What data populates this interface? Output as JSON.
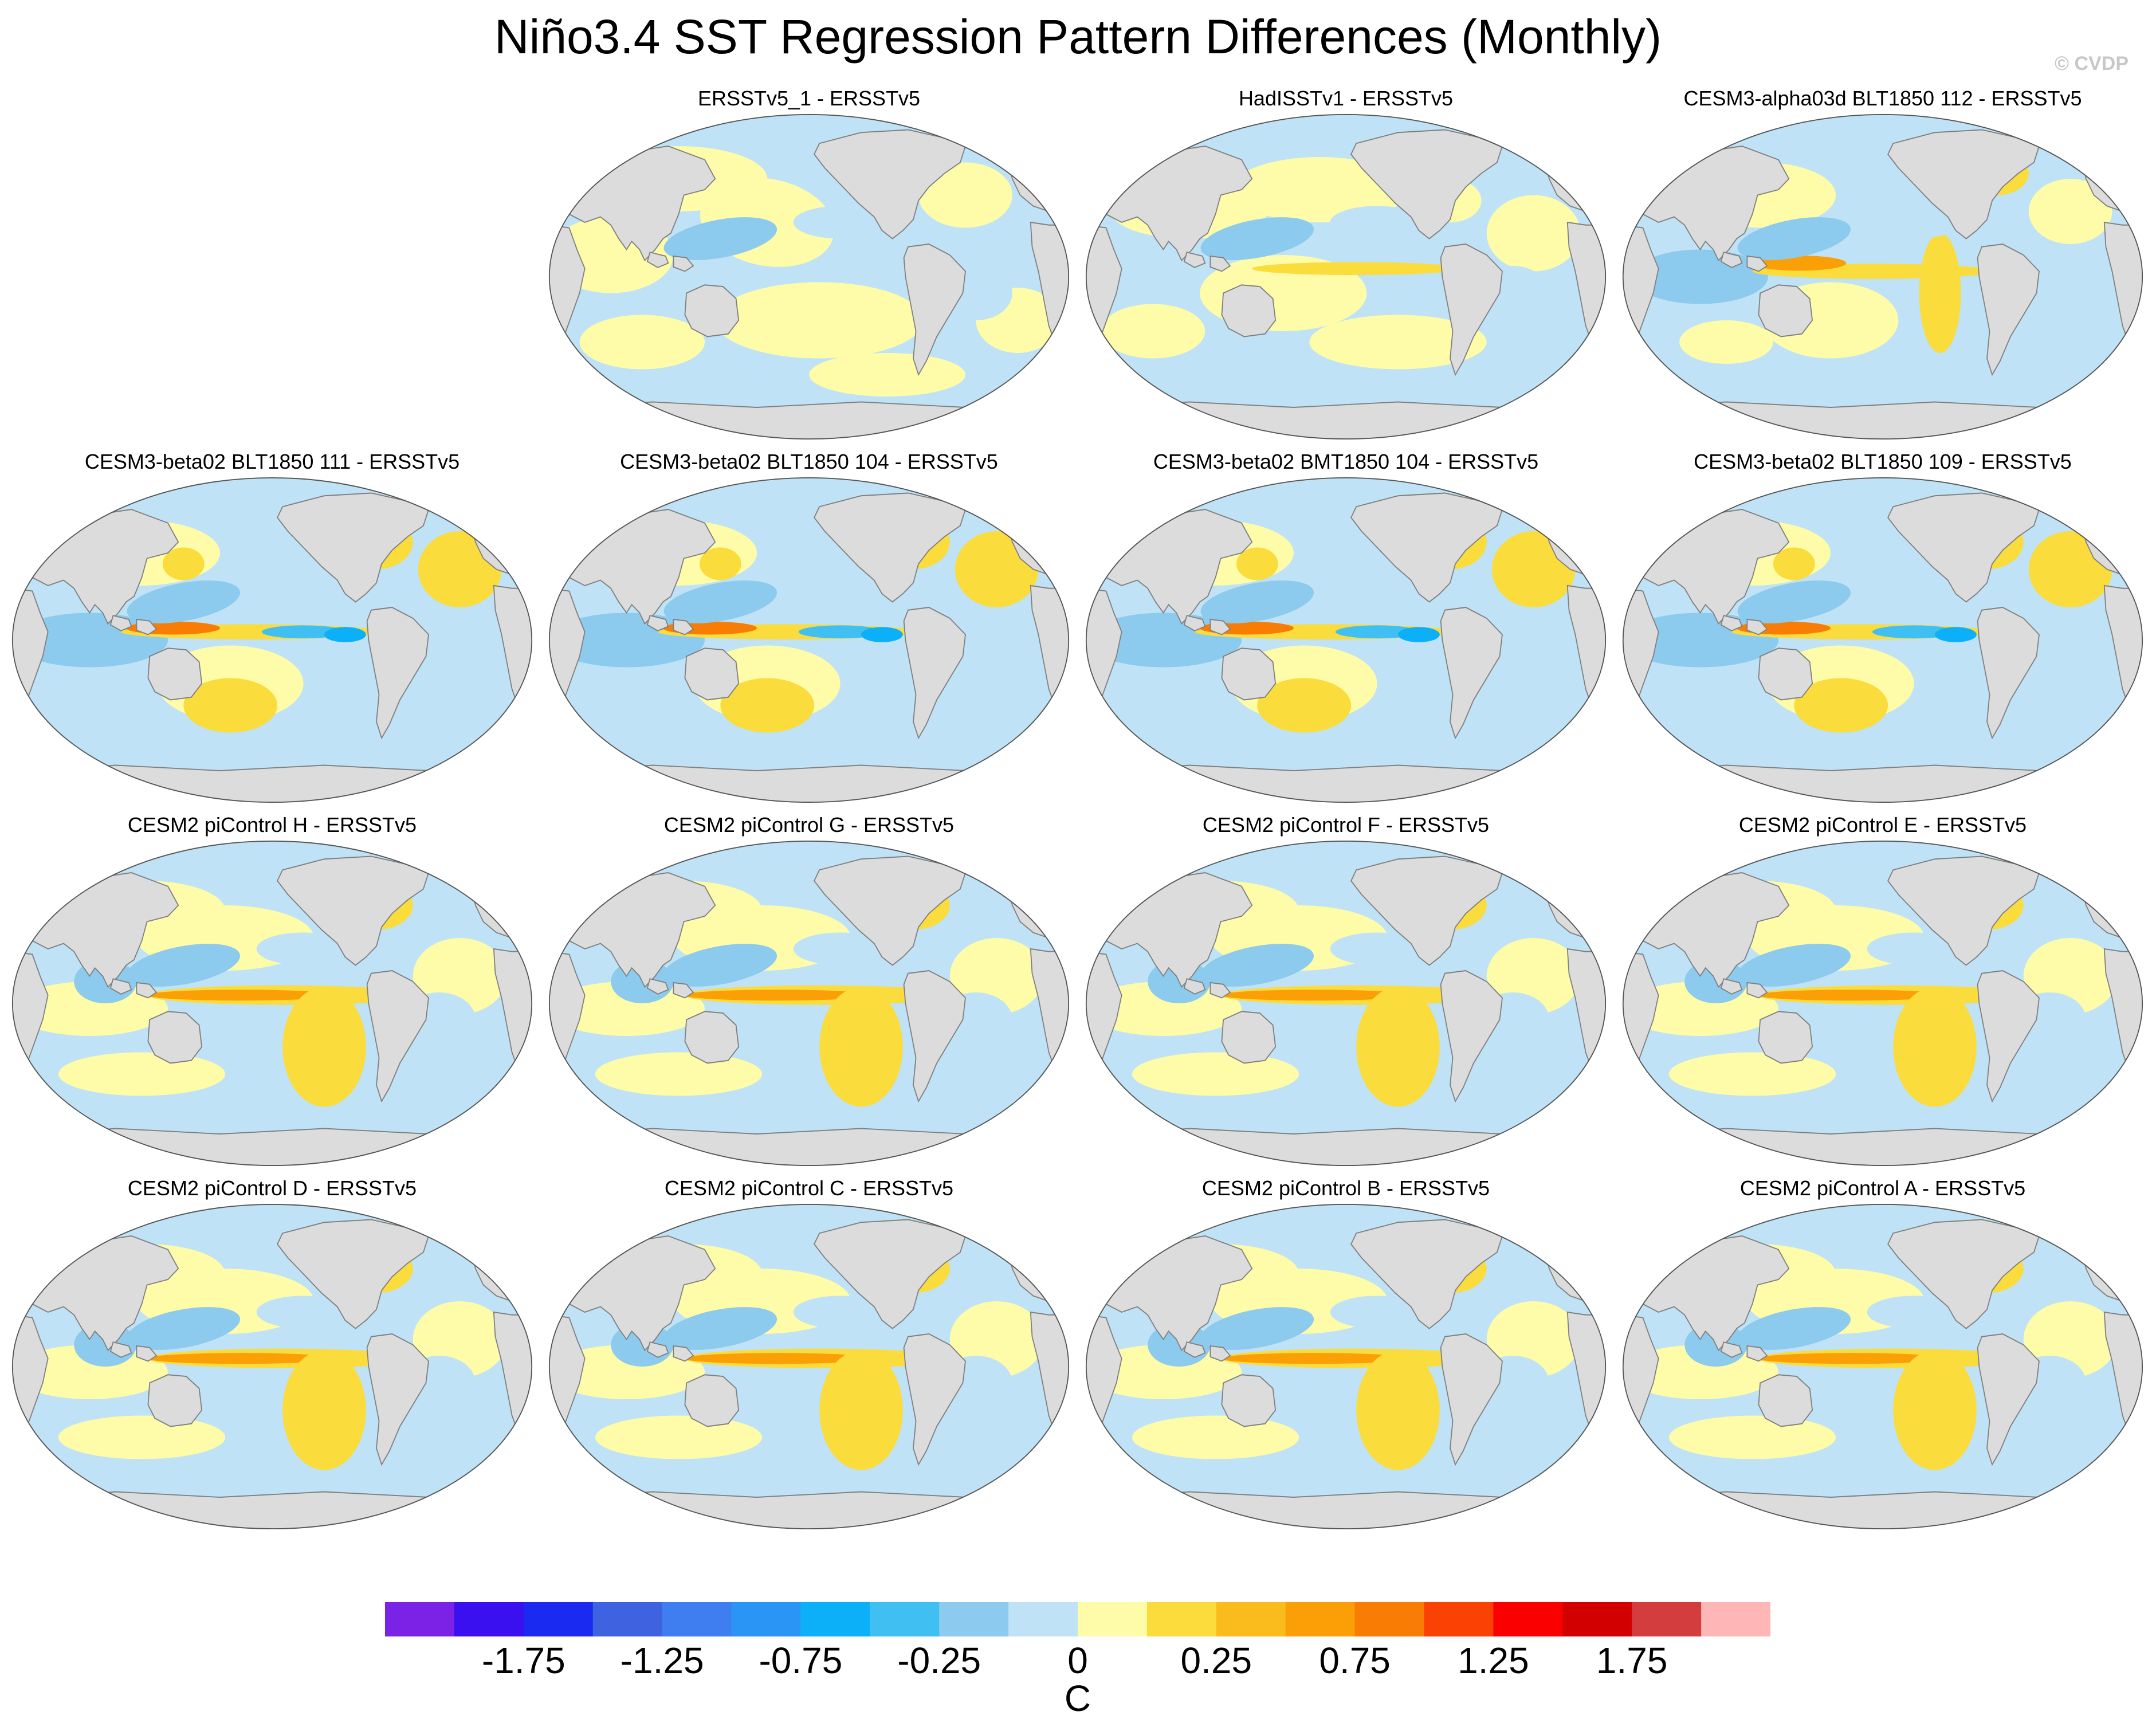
{
  "title": "Niño3.4 SST Regression Pattern Differences (Monthly)",
  "credit": "© CVDP",
  "colors": {
    "land": "#dcdcdc",
    "coast": "#808080",
    "levels": [
      "#7a22e6",
      "#3a10f0",
      "#1a2af0",
      "#3f63e0",
      "#3e7ef0",
      "#2a95f5",
      "#0cb0f8",
      "#40c0f2",
      "#8ccbed",
      "#bfe2f6",
      "#fefca8",
      "#fadc3c",
      "#fabb1c",
      "#fa9f06",
      "#f97c05",
      "#f94204",
      "#fa0000",
      "#d20000",
      "#d43d3d",
      "#ffb6b6"
    ]
  },
  "colorbar": {
    "labels": [
      "-1.75",
      "-1.25",
      "-0.75",
      "-0.25",
      "0",
      "0.25",
      "0.75",
      "1.25",
      "1.75"
    ],
    "label_levels": [
      1,
      3,
      5,
      7,
      9,
      11,
      13,
      15,
      17
    ],
    "unit": "C"
  },
  "panels": [
    {
      "title": "ERSSTv5_1 - ERSSTv5",
      "style": "obs1"
    },
    {
      "title": "HadISSTv1 - ERSSTv5",
      "style": "obs2"
    },
    {
      "title": "CESM3-alpha03d BLT1850 112 - ERSSTv5",
      "style": "model"
    },
    {
      "title": "CESM3-beta02 BLT1850 111 - ERSSTv5",
      "style": "beta"
    },
    {
      "title": "CESM3-beta02 BLT1850 104 - ERSSTv5",
      "style": "beta"
    },
    {
      "title": "CESM3-beta02 BMT1850 104 - ERSSTv5",
      "style": "beta"
    },
    {
      "title": "CESM3-beta02 BLT1850 109 - ERSSTv5",
      "style": "beta"
    },
    {
      "title": "CESM2 piControl H - ERSSTv5",
      "style": "cesm2"
    },
    {
      "title": "CESM2 piControl G - ERSSTv5",
      "style": "cesm2"
    },
    {
      "title": "CESM2 piControl F - ERSSTv5",
      "style": "cesm2"
    },
    {
      "title": "CESM2 piControl E - ERSSTv5",
      "style": "cesm2"
    },
    {
      "title": "CESM2 piControl D - ERSSTv5",
      "style": "cesm2"
    },
    {
      "title": "CESM2 piControl C - ERSSTv5",
      "style": "cesm2"
    },
    {
      "title": "CESM2 piControl B - ERSSTv5",
      "style": "cesm2"
    },
    {
      "title": "CESM2 piControl A - ERSSTv5",
      "style": "cesm2"
    }
  ]
}
